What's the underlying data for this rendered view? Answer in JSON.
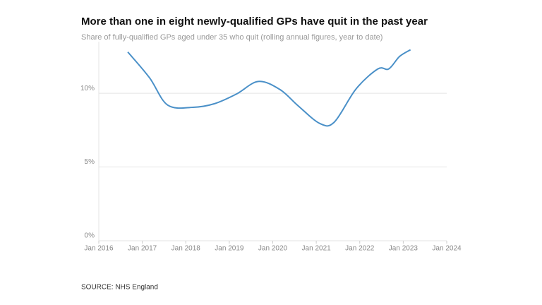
{
  "chart_data": {
    "type": "line",
    "title": "More than one in eight newly-qualified GPs have quit in the past year",
    "subtitle": "Share of fully-qualified GPs aged under 35 who quit (rolling annual figures, year to date)",
    "source": "SOURCE: NHS England",
    "series": [
      {
        "color": "#4a90c8",
        "x": [
          "2016-09",
          "2017-03",
          "2017-08",
          "2018-03",
          "2018-09",
          "2019-03",
          "2019-09",
          "2020-03",
          "2020-08",
          "2021-02",
          "2021-06",
          "2021-12",
          "2022-06",
          "2022-09",
          "2022-12",
          "2023-03"
        ],
        "values": [
          12.8,
          11.05,
          9.2,
          9.05,
          9.3,
          9.95,
          10.8,
          10.25,
          9.15,
          7.95,
          8.05,
          10.3,
          11.65,
          11.65,
          12.5,
          12.95
        ]
      }
    ],
    "xlim": [
      "2016-01",
      "2024-01"
    ],
    "xticks": [
      {
        "value": "2016-01",
        "label": "Jan 2016"
      },
      {
        "value": "2017-01",
        "label": "Jan 2017"
      },
      {
        "value": "2018-01",
        "label": "Jan 2018"
      },
      {
        "value": "2019-01",
        "label": "Jan 2019"
      },
      {
        "value": "2020-01",
        "label": "Jan 2020"
      },
      {
        "value": "2021-01",
        "label": "Jan 2021"
      },
      {
        "value": "2022-01",
        "label": "Jan 2022"
      },
      {
        "value": "2023-01",
        "label": "Jan 2023"
      },
      {
        "value": "2024-01",
        "label": "Jan 2024"
      }
    ],
    "ylim": [
      0,
      13.5
    ],
    "yticks": [
      {
        "value": 0,
        "label": "0%"
      },
      {
        "value": 5,
        "label": "5%"
      },
      {
        "value": 10,
        "label": "10%"
      }
    ],
    "grid": true
  }
}
